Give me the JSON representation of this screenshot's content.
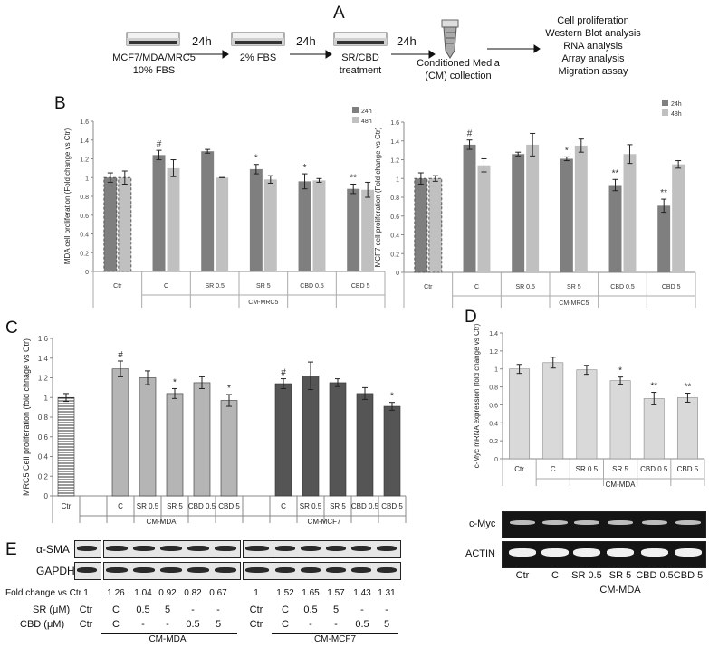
{
  "panelA": {
    "letter": "A",
    "step1": [
      "MCF7/MDA/MRC5",
      "10% FBS"
    ],
    "arrow1": "24h",
    "step2": "2% FBS",
    "arrow2": "24h",
    "step3": [
      "SR/CBD",
      "treatment"
    ],
    "arrow3": "24h",
    "step4": [
      "Conditioned Media",
      "(CM) collection"
    ],
    "assays": [
      "Cell proliferation",
      "Western Blot analysis",
      "RNA analysis",
      "Array analysis",
      "Migration assay"
    ]
  },
  "panelB": {
    "letter": "B",
    "colors": {
      "24h": "#7f7f7f",
      "48h": "#c0c0c0",
      "ctr24": "#7f7f7f",
      "ctr48": "#c0c0c0"
    }
  },
  "panelC": {
    "letter": "C"
  },
  "panelD": {
    "letter": "D",
    "gel_labels": [
      "c-Myc",
      "ACTIN"
    ],
    "lanes": [
      "Ctr",
      "C",
      "SR 0.5",
      "SR 5",
      "CBD 0.5",
      "CBD 5"
    ],
    "group": "CM-MDA"
  },
  "panelE": {
    "letter": "E",
    "blot_labels": [
      "α-SMA",
      "GAPDH"
    ],
    "fold_label": "Fold change vs Ctr",
    "fold_values": [
      "1",
      "1.26",
      "1.04",
      "0.92",
      "0.82",
      "0.67",
      "1",
      "1.52",
      "1.65",
      "1.57",
      "1.43",
      "1.31"
    ],
    "sr_label": "SR (μM)",
    "cbd_label": "CBD (μM)",
    "sr_row": [
      "Ctr",
      "C",
      "0.5",
      "5",
      "-",
      "-",
      "Ctr",
      "C",
      "0.5",
      "5",
      "-",
      "-"
    ],
    "cbd_row": [
      "Ctr",
      "C",
      "-",
      "-",
      "0.5",
      "5",
      "Ctr",
      "C",
      "-",
      "-",
      "0.5",
      "5"
    ],
    "groups": [
      "CM-MDA",
      "CM-MCF7"
    ]
  },
  "chart_data": [
    {
      "id": "B-left",
      "type": "bar",
      "ylabel": "MDA cell proliferation (Fold change vs Ctr)",
      "ylim": [
        0,
        1.6
      ],
      "yticks": [
        "0",
        "0.2",
        "0.4",
        "0.6",
        "0.8",
        "1",
        "1.2",
        "1.4",
        "1.6"
      ],
      "categories": [
        "Ctr",
        "C",
        "SR 0.5",
        "SR 5",
        "CBD 0.5",
        "CBD 5"
      ],
      "group_label": "CM-MRC5",
      "legend": [
        "24h",
        "48h"
      ],
      "legend_position": "top-right",
      "series": [
        {
          "name": "24h",
          "values": [
            1.0,
            1.24,
            1.28,
            1.09,
            0.96,
            0.88
          ],
          "errors": [
            0.05,
            0.05,
            0.02,
            0.05,
            0.08,
            0.05
          ]
        },
        {
          "name": "48h",
          "values": [
            1.0,
            1.1,
            1.0,
            0.98,
            0.97,
            0.87
          ],
          "errors": [
            0.07,
            0.09,
            0.0,
            0.04,
            0.02,
            0.08
          ]
        }
      ],
      "annotations": [
        {
          "category": "C",
          "series": "24h",
          "text": "#"
        },
        {
          "category": "SR 5",
          "series": "24h",
          "text": "*"
        },
        {
          "category": "CBD 0.5",
          "series": "24h",
          "text": "*"
        },
        {
          "category": "CBD 5",
          "series": "24h",
          "text": "**"
        }
      ]
    },
    {
      "id": "B-right",
      "type": "bar",
      "ylabel": "MCF7 cell proliferation (Fold change vs Ctr)",
      "ylim": [
        0,
        1.6
      ],
      "yticks": [
        "0",
        "0.2",
        "0.4",
        "0.6",
        "0.8",
        "1",
        "1.2",
        "1.4",
        "1.6"
      ],
      "categories": [
        "Ctr",
        "C",
        "SR 0.5",
        "SR 5",
        "CBD 0.5",
        "CBD 5"
      ],
      "group_label": "CM-MRC5",
      "legend": [
        "24h",
        "48h"
      ],
      "legend_position": "top-right",
      "series": [
        {
          "name": "24h",
          "values": [
            1.0,
            1.36,
            1.26,
            1.21,
            0.93,
            0.71
          ],
          "errors": [
            0.06,
            0.05,
            0.02,
            0.02,
            0.06,
            0.07
          ]
        },
        {
          "name": "48h",
          "values": [
            1.0,
            1.14,
            1.36,
            1.35,
            1.26,
            1.15
          ],
          "errors": [
            0.03,
            0.07,
            0.12,
            0.07,
            0.1,
            0.04
          ]
        }
      ],
      "annotations": [
        {
          "category": "C",
          "series": "24h",
          "text": "#"
        },
        {
          "category": "SR 5",
          "series": "24h",
          "text": "*"
        },
        {
          "category": "CBD 0.5",
          "series": "24h",
          "text": "**"
        },
        {
          "category": "CBD 5",
          "series": "24h",
          "text": "**"
        }
      ]
    },
    {
      "id": "C",
      "type": "bar",
      "ylabel": "MRC5 Cell proliferation (fold chnage vs Ctr)",
      "ylim": [
        0,
        1.6
      ],
      "yticks": [
        "0",
        "0.2",
        "0.4",
        "0.6",
        "0.8",
        "1",
        "1.2",
        "1.4",
        "1.6"
      ],
      "categories": [
        "Ctr",
        "",
        "C",
        "SR 0.5",
        "SR 5",
        "CBD 0.5",
        "CBD 5",
        "",
        "C",
        "SR 0.5",
        "SR 5",
        "CBD 0.5",
        "CBD 5"
      ],
      "groups": [
        {
          "label": "CM-MDA",
          "from": 2,
          "to": 6
        },
        {
          "label": "CM-MCF7",
          "from": 8,
          "to": 12
        }
      ],
      "values": [
        1.0,
        null,
        1.29,
        1.2,
        1.04,
        1.15,
        0.97,
        null,
        1.14,
        1.22,
        1.15,
        1.04,
        0.91
      ],
      "errors": [
        0.04,
        null,
        0.08,
        0.07,
        0.05,
        0.06,
        0.06,
        null,
        0.05,
        0.14,
        0.04,
        0.06,
        0.04
      ],
      "annotations": [
        {
          "index": 2,
          "text": "#"
        },
        {
          "index": 4,
          "text": "*"
        },
        {
          "index": 6,
          "text": "*"
        },
        {
          "index": 8,
          "text": "#"
        },
        {
          "index": 12,
          "text": "*"
        }
      ]
    },
    {
      "id": "D",
      "type": "bar",
      "ylabel": "c-Myc mRNA expression (fold change vs Ctr)",
      "ylim": [
        0,
        1.4
      ],
      "yticks": [
        "0",
        "0.2",
        "0.4",
        "0.6",
        "0.8",
        "1",
        "1.2",
        "1.4"
      ],
      "categories": [
        "Ctr",
        "C",
        "SR 0.5",
        "SR 5",
        "CBD 0.5",
        "CBD 5"
      ],
      "group_label": "CM-MDA",
      "values": [
        1.0,
        1.07,
        0.99,
        0.87,
        0.67,
        0.68
      ],
      "errors": [
        0.05,
        0.06,
        0.05,
        0.04,
        0.07,
        0.05
      ],
      "annotations": [
        {
          "index": 3,
          "text": "*"
        },
        {
          "index": 4,
          "text": "**"
        },
        {
          "index": 5,
          "text": "**"
        }
      ]
    }
  ]
}
